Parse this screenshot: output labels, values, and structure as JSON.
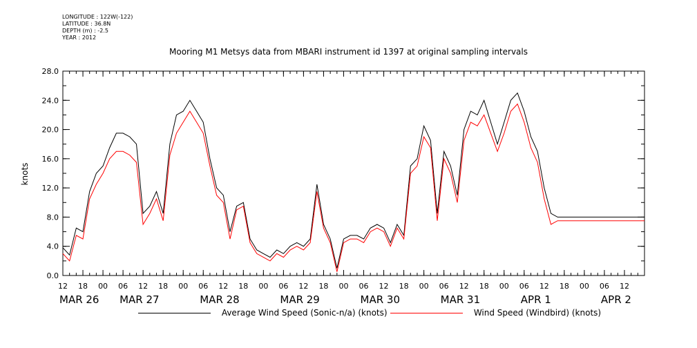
{
  "meta": {
    "longitude": "LONGITUDE : 122W(-122)",
    "latitude": "LATITUDE : 36.8N",
    "depth": "DEPTH (m) : -2.5",
    "year": "YEAR : 2012"
  },
  "chart_data": {
    "type": "line",
    "title": "Mooring M1 Metsys data from MBARI instrument id 1397 at original sampling intervals",
    "xlabel": "",
    "ylabel": "knots",
    "ylim": [
      0,
      28
    ],
    "xlim_hours": [
      0,
      174
    ],
    "y_ticks": [
      "0.0",
      "4.0",
      "8.0",
      "12.0",
      "16.0",
      "20.0",
      "24.0",
      "28.0"
    ],
    "x_hour_ticks": [
      "12",
      "18",
      "00",
      "06",
      "12",
      "18",
      "00",
      "06",
      "12",
      "18",
      "00",
      "06",
      "12",
      "18",
      "00",
      "06",
      "12",
      "18",
      "00",
      "06",
      "12",
      "18",
      "00",
      "06",
      "12",
      "18",
      "00",
      "06",
      "12"
    ],
    "x_date_labels": [
      "MAR 26",
      "MAR 27",
      "MAR 28",
      "MAR 29",
      "MAR 30",
      "MAR 31",
      "APR  1",
      "APR  2"
    ],
    "x_date_label_hours": [
      0,
      18,
      42,
      66,
      90,
      114,
      138,
      162
    ],
    "series": [
      {
        "name": "Average Wind Speed (Sonic-n/a) (knots)",
        "color": "#000000",
        "x_hours": [
          0,
          2,
          4,
          6,
          8,
          10,
          12,
          14,
          16,
          18,
          20,
          22,
          24,
          26,
          28,
          30,
          32,
          34,
          36,
          38,
          40,
          42,
          44,
          46,
          48,
          50,
          52,
          54,
          56,
          58,
          60,
          62,
          64,
          66,
          68,
          70,
          72,
          74,
          76,
          78,
          80,
          82,
          84,
          86,
          88,
          90,
          92,
          94,
          96,
          98,
          100,
          102,
          104,
          106,
          108,
          110,
          112,
          114,
          116,
          118,
          120,
          122,
          124,
          126,
          128,
          130,
          132,
          134,
          136,
          138,
          140,
          142,
          144,
          146,
          148,
          150,
          152,
          154,
          156,
          158,
          160,
          162,
          164,
          166,
          168,
          170,
          172,
          174
        ],
        "values": [
          3.8,
          2.8,
          6.5,
          6.0,
          11.5,
          14.0,
          15.0,
          17.5,
          19.5,
          19.5,
          19.0,
          18.0,
          8.5,
          9.5,
          11.5,
          8.5,
          18.0,
          22.0,
          22.5,
          24.0,
          22.5,
          21.0,
          16.0,
          12.0,
          11.0,
          6.0,
          9.5,
          10.0,
          5.0,
          3.5,
          3.0,
          2.5,
          3.5,
          3.0,
          4.0,
          4.5,
          4.0,
          5.0,
          12.5,
          7.0,
          5.0,
          1.0,
          5.0,
          5.5,
          5.5,
          5.0,
          6.5,
          7.0,
          6.5,
          4.5,
          7.0,
          5.5,
          15.0,
          16.0,
          20.5,
          18.5,
          8.5,
          17.0,
          15.0,
          11.0,
          20.0,
          22.5,
          22.0,
          24.0,
          21.0,
          18.0,
          21.0,
          24.0,
          25.0,
          22.5,
          19.0,
          17.0,
          12.0,
          8.5,
          8.0,
          8.0,
          8.0,
          8.0,
          8.0,
          8.0,
          8.0,
          8.0,
          8.0,
          8.0,
          8.0,
          8.0,
          8.0,
          8.0
        ]
      },
      {
        "name": "Wind Speed (Windbird) (knots)",
        "color": "#ff0000",
        "x_hours": [
          0,
          2,
          4,
          6,
          8,
          10,
          12,
          14,
          16,
          18,
          20,
          22,
          24,
          26,
          28,
          30,
          32,
          34,
          36,
          38,
          40,
          42,
          44,
          46,
          48,
          50,
          52,
          54,
          56,
          58,
          60,
          62,
          64,
          66,
          68,
          70,
          72,
          74,
          76,
          78,
          80,
          82,
          84,
          86,
          88,
          90,
          92,
          94,
          96,
          98,
          100,
          102,
          104,
          106,
          108,
          110,
          112,
          114,
          116,
          118,
          120,
          122,
          124,
          126,
          128,
          130,
          132,
          134,
          136,
          138,
          140,
          142,
          144,
          146,
          148,
          150,
          152,
          154,
          156,
          158,
          160,
          162,
          164,
          166,
          168,
          170,
          172,
          174
        ],
        "values": [
          3.0,
          2.0,
          5.5,
          5.0,
          10.5,
          12.5,
          14.0,
          16.0,
          17.0,
          17.0,
          16.5,
          15.5,
          7.0,
          8.5,
          10.5,
          7.5,
          16.5,
          19.5,
          21.0,
          22.5,
          21.0,
          19.5,
          15.0,
          11.0,
          10.0,
          5.0,
          9.0,
          9.5,
          4.5,
          3.0,
          2.5,
          2.0,
          3.0,
          2.5,
          3.5,
          4.0,
          3.5,
          4.5,
          11.5,
          6.5,
          4.5,
          0.5,
          4.5,
          5.0,
          5.0,
          4.5,
          6.0,
          6.5,
          6.0,
          4.0,
          6.5,
          5.0,
          14.0,
          15.0,
          19.0,
          17.5,
          7.5,
          16.0,
          14.0,
          10.0,
          18.5,
          21.0,
          20.5,
          22.0,
          19.5,
          17.0,
          19.5,
          22.5,
          23.5,
          21.0,
          17.5,
          15.5,
          10.5,
          7.0,
          7.5,
          7.5,
          7.5,
          7.5,
          7.5,
          7.5,
          7.5,
          7.5,
          7.5,
          7.5,
          7.5,
          7.5,
          7.5,
          7.5
        ]
      }
    ]
  }
}
